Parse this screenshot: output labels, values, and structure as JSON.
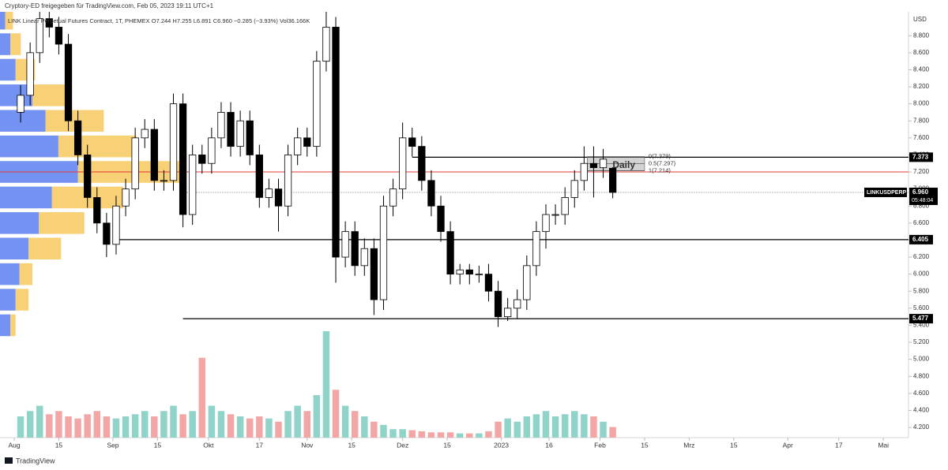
{
  "chart_data": {
    "type": "candlestick",
    "title": "Cryptory-ED freigegeben für TradingView.com, Feb 05, 2023 19:11 UTC+1",
    "subtitle": "LINK Linear Perpetual Futures Contract, 1T, PHEMEX  O7.244  H7.255  L6.891  C6.960  −0.285 (−3.93%)  Vol36.166K",
    "currency": "USD",
    "brand": "TradingView",
    "x": [
      2,
      5,
      8,
      11,
      14,
      17,
      20,
      23,
      26,
      29,
      32,
      35,
      38,
      41,
      44,
      47,
      50,
      53,
      56,
      59,
      62,
      65,
      68,
      71,
      74,
      77,
      80,
      83,
      86,
      89,
      92,
      95,
      98,
      101,
      104,
      107,
      110,
      113,
      116,
      119,
      122,
      125,
      128,
      131,
      134,
      137,
      140,
      143,
      146,
      149,
      152,
      155,
      158,
      161,
      164,
      167,
      170,
      173,
      176,
      179,
      182,
      185,
      188
    ],
    "ohlc": [
      [
        7.9,
        8.22,
        7.78,
        8.1
      ],
      [
        8.1,
        8.72,
        7.98,
        8.6
      ],
      [
        8.6,
        9.12,
        8.48,
        9.0
      ],
      [
        9.0,
        9.12,
        8.78,
        8.9
      ],
      [
        8.9,
        9.02,
        8.58,
        8.7
      ],
      [
        8.7,
        8.82,
        7.68,
        7.8
      ],
      [
        7.8,
        7.92,
        7.28,
        7.4
      ],
      [
        7.4,
        7.52,
        6.78,
        6.9
      ],
      [
        6.9,
        7.02,
        6.48,
        6.6
      ],
      [
        6.6,
        6.72,
        6.2,
        6.35
      ],
      [
        6.35,
        6.92,
        6.23,
        6.8
      ],
      [
        6.8,
        7.12,
        6.68,
        7.0
      ],
      [
        7.0,
        7.72,
        6.88,
        7.6
      ],
      [
        7.6,
        7.82,
        7.48,
        7.7
      ],
      [
        7.7,
        7.82,
        6.98,
        7.1
      ],
      [
        7.1,
        7.22,
        6.98,
        7.1
      ],
      [
        7.1,
        8.12,
        6.98,
        8.0
      ],
      [
        8.0,
        8.12,
        6.55,
        6.7
      ],
      [
        6.7,
        7.52,
        6.58,
        7.4
      ],
      [
        7.4,
        7.52,
        7.18,
        7.3
      ],
      [
        7.3,
        7.72,
        7.18,
        7.6
      ],
      [
        7.6,
        8.02,
        7.48,
        7.9
      ],
      [
        7.9,
        8.02,
        7.38,
        7.5
      ],
      [
        7.5,
        7.92,
        7.38,
        7.8
      ],
      [
        7.8,
        7.92,
        7.28,
        7.4
      ],
      [
        7.4,
        7.52,
        6.78,
        6.9
      ],
      [
        6.9,
        7.12,
        6.78,
        7.0
      ],
      [
        7.0,
        7.12,
        6.5,
        6.8
      ],
      [
        6.8,
        7.52,
        6.68,
        7.4
      ],
      [
        7.4,
        7.72,
        7.28,
        7.6
      ],
      [
        7.6,
        7.72,
        7.38,
        7.5
      ],
      [
        7.5,
        8.62,
        7.38,
        8.5
      ],
      [
        8.5,
        9.2,
        8.38,
        8.9
      ],
      [
        8.9,
        9.02,
        5.9,
        6.2
      ],
      [
        6.2,
        6.62,
        6.08,
        6.5
      ],
      [
        6.5,
        6.62,
        5.98,
        6.1
      ],
      [
        6.1,
        6.42,
        5.98,
        6.3
      ],
      [
        6.3,
        6.42,
        5.52,
        5.7
      ],
      [
        5.7,
        6.92,
        5.58,
        6.8
      ],
      [
        6.8,
        7.12,
        6.68,
        7.0
      ],
      [
        7.0,
        7.78,
        6.88,
        7.6
      ],
      [
        7.6,
        7.72,
        7.38,
        7.5
      ],
      [
        7.5,
        7.62,
        6.98,
        7.1
      ],
      [
        7.1,
        7.22,
        6.68,
        6.8
      ],
      [
        6.8,
        6.92,
        6.38,
        6.5
      ],
      [
        6.5,
        6.62,
        5.88,
        6.0
      ],
      [
        6.0,
        6.12,
        5.88,
        6.05
      ],
      [
        6.05,
        6.12,
        5.88,
        6.0
      ],
      [
        6.0,
        6.1,
        5.9,
        6.0
      ],
      [
        6.0,
        6.12,
        5.68,
        5.8
      ],
      [
        5.8,
        5.92,
        5.38,
        5.5
      ],
      [
        5.5,
        5.72,
        5.45,
        5.6
      ],
      [
        5.6,
        5.82,
        5.48,
        5.7
      ],
      [
        5.7,
        6.22,
        5.58,
        6.1
      ],
      [
        6.1,
        6.62,
        5.98,
        6.5
      ],
      [
        6.5,
        6.82,
        6.3,
        6.7
      ],
      [
        6.7,
        6.82,
        6.58,
        6.7
      ],
      [
        6.7,
        7.02,
        6.58,
        6.9
      ],
      [
        6.9,
        7.22,
        6.78,
        7.1
      ],
      [
        7.1,
        7.5,
        6.98,
        7.3
      ],
      [
        7.3,
        7.5,
        6.9,
        7.25
      ],
      [
        7.25,
        7.47,
        7.13,
        7.35
      ],
      [
        7.244,
        7.255,
        6.891,
        6.96
      ]
    ],
    "volume": [
      20,
      25,
      30,
      22,
      25,
      20,
      18,
      22,
      25,
      20,
      18,
      20,
      22,
      25,
      20,
      25,
      30,
      22,
      25,
      75,
      30,
      25,
      22,
      20,
      18,
      20,
      18,
      15,
      25,
      30,
      25,
      40,
      100,
      45,
      30,
      25,
      20,
      15,
      12,
      8,
      8,
      7,
      6,
      5,
      5,
      5,
      4,
      4,
      4,
      6,
      15,
      18,
      15,
      20,
      22,
      25,
      20,
      22,
      25,
      22,
      20,
      15,
      10
    ],
    "volume_profile": {
      "prices": [
        5.4,
        5.7,
        6.0,
        6.3,
        6.6,
        6.9,
        7.2,
        7.5,
        7.8,
        8.1,
        8.4,
        8.7,
        9.0
      ],
      "up": [
        8,
        12,
        15,
        22,
        30,
        40,
        60,
        45,
        35,
        25,
        12,
        8,
        4
      ],
      "down": [
        4,
        10,
        10,
        25,
        35,
        55,
        80,
        60,
        45,
        30,
        15,
        8,
        6
      ],
      "up_color": "#5b7ff0",
      "down_color": "#f7c85e"
    },
    "up_color": "#ffffff",
    "down_color": "#000000",
    "volume_up_color": "#8fd3c9",
    "volume_down_color": "#f3a6a6",
    "levels": [
      {
        "value": 7.373,
        "x0": 125
      },
      {
        "value": 6.405,
        "x0": 31
      },
      {
        "value": 5.477,
        "x0": 53
      }
    ],
    "red_line": 7.2,
    "fib": {
      "x": [
        180,
        198
      ],
      "levels": [
        {
          "value": 7.379,
          "label": "0(7.379)"
        },
        {
          "value": 7.297,
          "label": "0.5(7.297)"
        },
        {
          "value": 7.214,
          "label": "1(7.214)"
        }
      ],
      "label": "Daily"
    },
    "last_price": {
      "value": 6.96,
      "label": "6.960"
    },
    "symbol": "LINKUSDPERP",
    "countdown": "05:48:04",
    "xlim": [
      -4.47,
      280.9
    ],
    "ylim": [
      4.08,
      9.08
    ],
    "xticks": [
      {
        "value": 0,
        "label": "Aug"
      },
      {
        "value": 14,
        "label": "15"
      },
      {
        "value": 31,
        "label": "Sep"
      },
      {
        "value": 45,
        "label": "15"
      },
      {
        "value": 61,
        "label": "Okt"
      },
      {
        "value": 77,
        "label": "17"
      },
      {
        "value": 92,
        "label": "Nov"
      },
      {
        "value": 106,
        "label": "15"
      },
      {
        "value": 122,
        "label": "Dez"
      },
      {
        "value": 136,
        "label": "15"
      },
      {
        "value": 153,
        "label": "2023"
      },
      {
        "value": 168,
        "label": "16"
      },
      {
        "value": 184,
        "label": "Feb"
      },
      {
        "value": 198,
        "label": "15"
      },
      {
        "value": 212,
        "label": "Mrz"
      },
      {
        "value": 226,
        "label": "15"
      },
      {
        "value": 243,
        "label": "Apr"
      },
      {
        "value": 259,
        "label": "17"
      },
      {
        "value": 273,
        "label": "Mai"
      }
    ],
    "yticks": [
      {
        "value": 4.2,
        "label": "4.200"
      },
      {
        "value": 4.4,
        "label": "4.400"
      },
      {
        "value": 4.6,
        "label": "4.600"
      },
      {
        "value": 4.8,
        "label": "4.800"
      },
      {
        "value": 5.0,
        "label": "5.000"
      },
      {
        "value": 5.2,
        "label": "5.200"
      },
      {
        "value": 5.4,
        "label": "5.400"
      },
      {
        "value": 5.6,
        "label": "5.600"
      },
      {
        "value": 5.8,
        "label": "5.800"
      },
      {
        "value": 6.0,
        "label": "6.000"
      },
      {
        "value": 6.2,
        "label": "6.200"
      },
      {
        "value": 6.4,
        "label": "6.400"
      },
      {
        "value": 6.6,
        "label": "6.600"
      },
      {
        "value": 6.8,
        "label": "6.800"
      },
      {
        "value": 7.0,
        "label": "7.000"
      },
      {
        "value": 7.2,
        "label": "7.200"
      },
      {
        "value": 7.4,
        "label": "7.400"
      },
      {
        "value": 7.6,
        "label": "7.600"
      },
      {
        "value": 7.8,
        "label": "7.800"
      },
      {
        "value": 8.0,
        "label": "8.000"
      },
      {
        "value": 8.2,
        "label": "8.200"
      },
      {
        "value": 8.4,
        "label": "8.400"
      },
      {
        "value": 8.6,
        "label": "8.600"
      },
      {
        "value": 8.8,
        "label": "8.800"
      }
    ]
  }
}
